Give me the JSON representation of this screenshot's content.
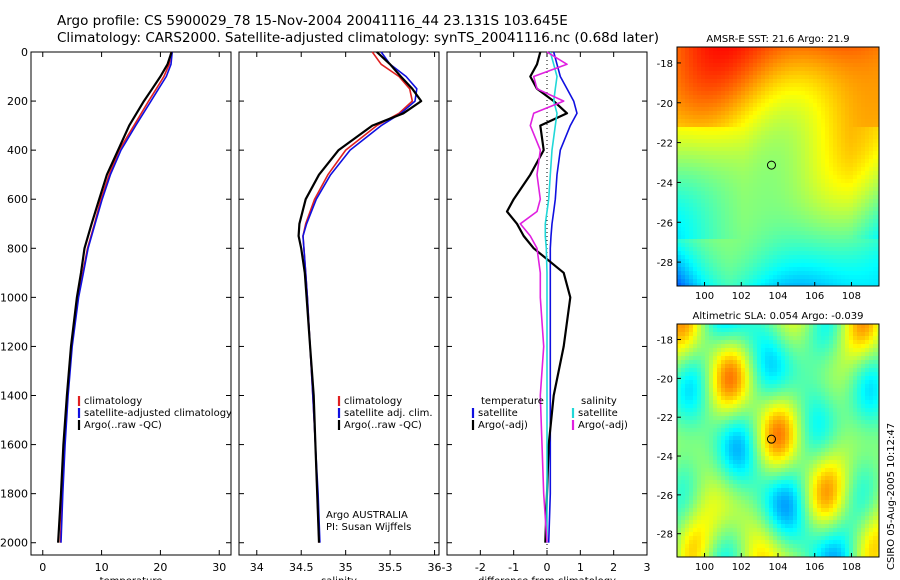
{
  "header": {
    "line1": "Argo profile: CS 5900029_78 15-Nov-2004 20041116_44 23.131S 103.645E",
    "line2": "Climatology: CARS2000. Satellite-adjusted climatology: synTS_20041116.nc (0.68d later)"
  },
  "stamp": "CSIRO 05-Aug-2005 10:12:47",
  "colors": {
    "climatology": "#e02020",
    "satellite": "#1010e0",
    "argo": "#000000",
    "cyan": "#20d8d8",
    "magenta": "#e020e0"
  },
  "chart_data": [
    {
      "id": "temperature",
      "type": "line",
      "xlabel": "temperature",
      "ylabel": "",
      "xlim": [
        -2,
        32
      ],
      "ylim": [
        2050,
        0
      ],
      "xticks": [
        0,
        10,
        20,
        30
      ],
      "yticks": [
        0,
        200,
        400,
        600,
        800,
        1000,
        1200,
        1400,
        1600,
        1800,
        2000
      ],
      "legend": {
        "position": "lower-right",
        "entries": [
          "climatology",
          "satellite-adjusted climatology",
          "Argo(..raw -QC)"
        ]
      },
      "depth": [
        0,
        50,
        100,
        150,
        200,
        300,
        400,
        500,
        600,
        700,
        800,
        900,
        1000,
        1200,
        1400,
        1600,
        1800,
        2000
      ],
      "series": [
        {
          "name": "climatology",
          "color": "#e02020",
          "values": [
            21.8,
            21.5,
            20.6,
            19.3,
            18.0,
            15.5,
            13.0,
            11.3,
            9.9,
            8.8,
            7.6,
            6.8,
            6.0,
            4.9,
            4.2,
            3.7,
            3.3,
            3.0
          ]
        },
        {
          "name": "satellite-adjusted climatology",
          "color": "#1010e0",
          "values": [
            22.0,
            21.8,
            21.0,
            19.7,
            18.4,
            15.8,
            13.3,
            11.5,
            10.1,
            8.9,
            7.7,
            6.9,
            6.1,
            5.0,
            4.3,
            3.8,
            3.4,
            3.1
          ]
        },
        {
          "name": "Argo(..raw -QC)",
          "color": "#000000",
          "values": [
            21.9,
            21.2,
            20.0,
            18.6,
            17.2,
            14.7,
            12.8,
            10.9,
            9.6,
            8.3,
            7.1,
            6.5,
            5.8,
            4.8,
            4.1,
            3.5,
            3.1,
            2.6
          ]
        }
      ]
    },
    {
      "id": "salinity",
      "type": "line",
      "xlabel": "salinity",
      "xlim": [
        33.8,
        36.05
      ],
      "ylim": [
        2050,
        0
      ],
      "xticks": [
        34,
        34.5,
        35,
        35.5,
        36
      ],
      "legend": {
        "position": "lower-right",
        "entries": [
          "climatology",
          "satellite adj. clim.",
          "Argo(..raw -QC)"
        ]
      },
      "annotation": [
        "Argo AUSTRALIA",
        "PI: Susan Wijffels"
      ],
      "depth": [
        0,
        50,
        100,
        150,
        200,
        250,
        300,
        400,
        500,
        600,
        700,
        750,
        800,
        900,
        1000,
        1200,
        1400,
        1600,
        1800,
        2000
      ],
      "series": [
        {
          "name": "climatology",
          "color": "#e02020",
          "values": [
            35.3,
            35.4,
            35.6,
            35.72,
            35.75,
            35.6,
            35.35,
            35.0,
            34.8,
            34.65,
            34.55,
            34.52,
            34.53,
            34.55,
            34.57,
            34.6,
            34.63,
            34.66,
            34.68,
            34.7
          ]
        },
        {
          "name": "satellite adj. clim.",
          "color": "#1010e0",
          "values": [
            35.4,
            35.5,
            35.68,
            35.8,
            35.78,
            35.62,
            35.4,
            35.05,
            34.83,
            34.67,
            34.56,
            34.52,
            34.53,
            34.55,
            34.57,
            34.6,
            34.63,
            34.66,
            34.69,
            34.71
          ]
        },
        {
          "name": "Argo(..raw -QC)",
          "color": "#000000",
          "values": [
            35.35,
            35.5,
            35.62,
            35.75,
            35.85,
            35.65,
            35.3,
            34.92,
            34.7,
            34.55,
            34.48,
            34.47,
            34.5,
            34.54,
            34.56,
            34.6,
            34.64,
            34.66,
            34.68,
            34.7
          ]
        }
      ]
    },
    {
      "id": "difference",
      "type": "line",
      "xlabel": "difference from climatology",
      "xlim": [
        -3,
        3
      ],
      "ylim": [
        2050,
        0
      ],
      "xticks": [
        -3,
        -2,
        -1,
        0,
        1,
        2,
        3
      ],
      "legend_temperature": {
        "title": "temperature",
        "entries": [
          "satellite",
          "Argo(-adj)"
        ]
      },
      "legend_salinity": {
        "title": "salinity",
        "entries": [
          "satellite",
          "Argo(-adj)"
        ]
      },
      "depth": [
        0,
        50,
        100,
        150,
        200,
        250,
        300,
        400,
        500,
        600,
        650,
        700,
        750,
        800,
        900,
        1000,
        1200,
        1400,
        1600,
        1800,
        2000
      ],
      "series": [
        {
          "name": "temperature satellite",
          "color": "#1010e0",
          "values": [
            0.2,
            0.3,
            0.4,
            0.6,
            0.8,
            0.9,
            0.7,
            0.4,
            0.3,
            0.25,
            0.2,
            0.15,
            0.12,
            0.1,
            0.1,
            0.1,
            0.1,
            0.1,
            0.1,
            0.1,
            0.05
          ]
        },
        {
          "name": "temperature Argo(-adj)",
          "color": "#000000",
          "values": [
            -0.2,
            -0.3,
            -0.5,
            -0.3,
            0.2,
            0.6,
            -0.2,
            -0.1,
            -0.5,
            -1.0,
            -1.2,
            -0.9,
            -0.7,
            -0.4,
            0.5,
            0.7,
            0.5,
            0.2,
            0.05,
            0.0,
            -0.05
          ]
        },
        {
          "name": "salinity satellite",
          "color": "#20d8d8",
          "values": [
            0.1,
            0.2,
            0.3,
            0.25,
            0.2,
            0.3,
            0.25,
            0.15,
            0.1,
            0.05,
            0.0,
            -0.05,
            -0.05,
            -0.02,
            0.0,
            0.0,
            0.0,
            0.0,
            0.0,
            0.0,
            0.0
          ]
        },
        {
          "name": "salinity Argo(-adj)",
          "color": "#e020e0",
          "values": [
            0.0,
            0.6,
            -0.4,
            -0.3,
            0.5,
            -0.4,
            -0.5,
            -0.2,
            -0.3,
            -0.2,
            -0.3,
            -0.8,
            -0.5,
            -0.3,
            -0.2,
            -0.2,
            -0.1,
            -0.2,
            -0.15,
            -0.1,
            0.0
          ]
        }
      ]
    },
    {
      "id": "sst_map",
      "type": "heatmap",
      "title": "AMSR-E SST: 21.6 Argo: 21.9",
      "xlim": [
        98.5,
        109.5
      ],
      "ylim": [
        -29.2,
        -17.2
      ],
      "xticks": [
        100,
        102,
        104,
        106,
        108
      ],
      "yticks": [
        -18,
        -20,
        -22,
        -24,
        -26,
        -28
      ],
      "marker": {
        "lon": 103.645,
        "lat": -23.131
      },
      "palette": "jet"
    },
    {
      "id": "sla_map",
      "type": "heatmap",
      "title": "Altimetric SLA: 0.054 Argo: -0.039",
      "xlim": [
        98.5,
        109.5
      ],
      "ylim": [
        -29.2,
        -17.2
      ],
      "xticks": [
        100,
        102,
        104,
        106,
        108
      ],
      "yticks": [
        -18,
        -20,
        -22,
        -24,
        -26,
        -28
      ],
      "marker": {
        "lon": 103.645,
        "lat": -23.131
      },
      "palette": "jet"
    }
  ]
}
